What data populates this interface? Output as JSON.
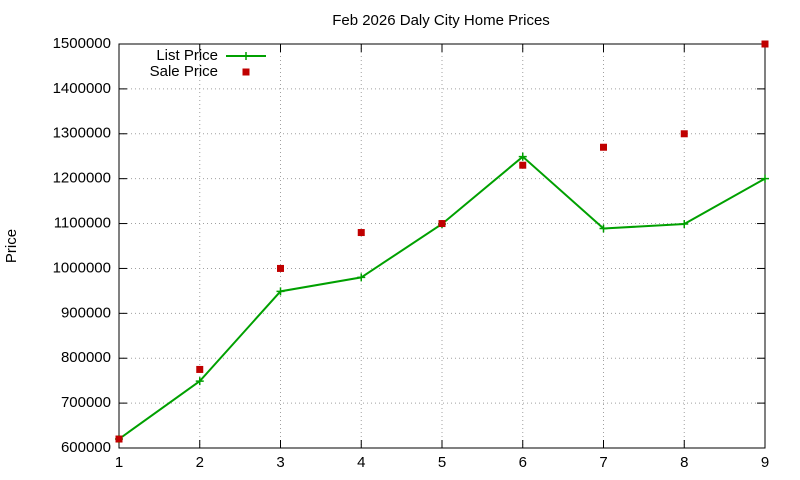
{
  "chart_data": {
    "type": "line",
    "title": "Feb 2026 Daly City Home Prices",
    "y_label": "Price",
    "x": [
      1,
      2,
      3,
      4,
      5,
      6,
      7,
      8,
      9
    ],
    "xlim": [
      1,
      9
    ],
    "xticks": [
      1,
      2,
      3,
      4,
      5,
      6,
      7,
      8,
      9
    ],
    "ylim": [
      600000,
      1500000
    ],
    "yticks": [
      600000,
      700000,
      800000,
      900000,
      1000000,
      1100000,
      1200000,
      1300000,
      1400000,
      1500000
    ],
    "grid": true,
    "legend_position": "top-left",
    "series": [
      {
        "name": "List Price",
        "color": "#00a000",
        "line": true,
        "marker": "plus",
        "values": [
          620000,
          749000,
          949000,
          980000,
          1099000,
          1249000,
          1089000,
          1099000,
          1200000
        ]
      },
      {
        "name": "Sale Price",
        "color": "#c00000",
        "line": false,
        "marker": "square",
        "values": [
          620000,
          775000,
          1000000,
          1080000,
          1100000,
          1230000,
          1270000,
          1300000,
          1500000
        ]
      }
    ]
  }
}
